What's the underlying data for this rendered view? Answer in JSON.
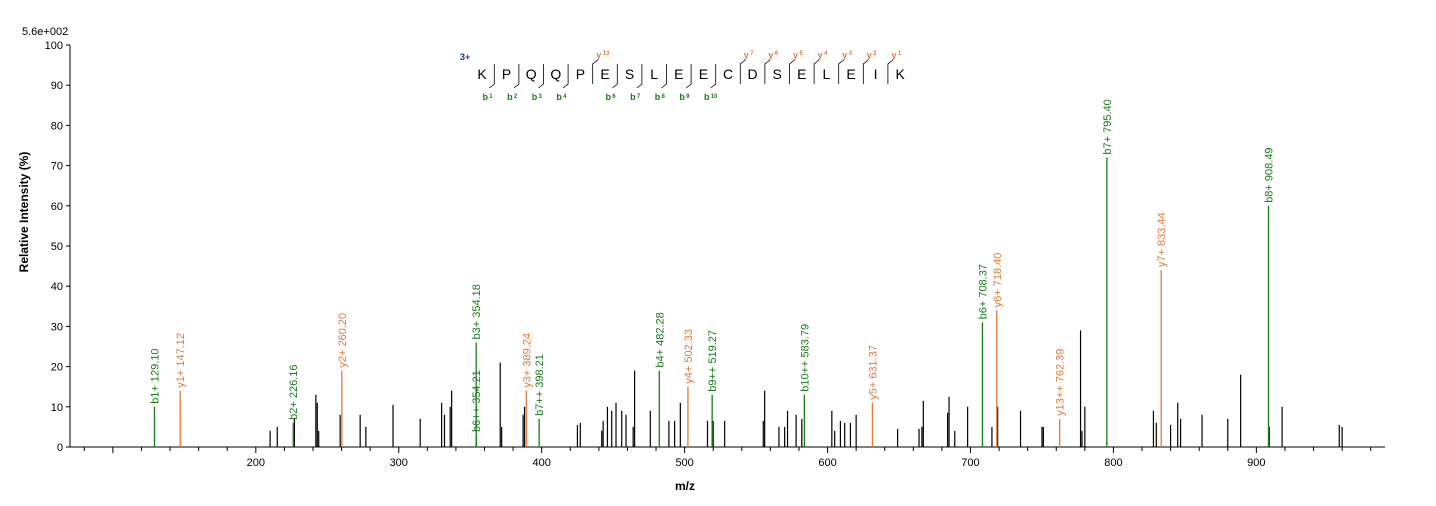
{
  "chart_data": {
    "type": "bar",
    "scale_label": "5.6e+002",
    "xlabel": "m/z",
    "ylabel": "Relative   Intensity (%)",
    "xlim": [
      70,
      990
    ],
    "ylim": [
      0,
      100
    ],
    "x_ticks": [
      200,
      300,
      400,
      500,
      600,
      700,
      800,
      900
    ],
    "y_ticks": [
      0,
      10,
      20,
      30,
      40,
      50,
      60,
      70,
      80,
      90,
      100
    ],
    "colors": {
      "b": "#1a7a1a",
      "y": "#e07a3a",
      "other": "#000000"
    },
    "annotated_peaks": [
      {
        "mz": 129.1,
        "intensity": 10,
        "type": "b",
        "label": "b1+ 129.10"
      },
      {
        "mz": 147.12,
        "intensity": 14,
        "type": "y",
        "label": "y1+ 147.12"
      },
      {
        "mz": 226.16,
        "intensity": 6,
        "type": "b",
        "label": "b2+ 226.16"
      },
      {
        "mz": 260.2,
        "intensity": 19,
        "type": "y",
        "label": "y2+ 260.20"
      },
      {
        "mz": 354.21,
        "intensity": 3,
        "type": "b",
        "label": "b6++ 354.21"
      },
      {
        "mz": 354.18,
        "intensity": 26,
        "type": "b",
        "label": "b3+ 354.18"
      },
      {
        "mz": 389.24,
        "intensity": 14,
        "type": "y",
        "label": "y3+ 389.24"
      },
      {
        "mz": 398.21,
        "intensity": 7,
        "type": "b",
        "label": "b7++ 398.21"
      },
      {
        "mz": 482.28,
        "intensity": 19,
        "type": "b",
        "label": "b4+ 482.28"
      },
      {
        "mz": 502.33,
        "intensity": 15,
        "type": "y",
        "label": "y4+ 502.33"
      },
      {
        "mz": 519.27,
        "intensity": 13,
        "type": "b",
        "label": "b9++ 519.27"
      },
      {
        "mz": 583.79,
        "intensity": 13,
        "type": "b",
        "label": "b10++ 583.79"
      },
      {
        "mz": 631.37,
        "intensity": 11,
        "type": "y",
        "label": "y5+ 631.37"
      },
      {
        "mz": 708.37,
        "intensity": 31,
        "type": "b",
        "label": "b6+ 708.37"
      },
      {
        "mz": 718.4,
        "intensity": 34,
        "type": "y",
        "label": "y6+ 718.40"
      },
      {
        "mz": 762.39,
        "intensity": 7,
        "type": "y",
        "label": "y13++ 762.39"
      },
      {
        "mz": 795.4,
        "intensity": 72,
        "type": "b",
        "label": "b7+ 795.40"
      },
      {
        "mz": 833.44,
        "intensity": 44,
        "type": "y",
        "label": "y7+ 833.44"
      },
      {
        "mz": 908.49,
        "intensity": 60,
        "type": "b",
        "label": "b8+ 908.49"
      }
    ],
    "unlabeled_peaks": [
      [
        210,
        4
      ],
      [
        215,
        5
      ],
      [
        227,
        7
      ],
      [
        242,
        13
      ],
      [
        243,
        11
      ],
      [
        244,
        4
      ],
      [
        259,
        8
      ],
      [
        273,
        8
      ],
      [
        277,
        5
      ],
      [
        296,
        10.5
      ],
      [
        315,
        7
      ],
      [
        330,
        11
      ],
      [
        332,
        8
      ],
      [
        336,
        10
      ],
      [
        337,
        14
      ],
      [
        371,
        21
      ],
      [
        372,
        5
      ],
      [
        387,
        8
      ],
      [
        388,
        10
      ],
      [
        425,
        5.5
      ],
      [
        427,
        6
      ],
      [
        442,
        4
      ],
      [
        443,
        6.5
      ],
      [
        446,
        10
      ],
      [
        449,
        9
      ],
      [
        452,
        11
      ],
      [
        456,
        9
      ],
      [
        459,
        8
      ],
      [
        464,
        5
      ],
      [
        465,
        19
      ],
      [
        476,
        9
      ],
      [
        489,
        6.5
      ],
      [
        493,
        6.5
      ],
      [
        497,
        11
      ],
      [
        516,
        6.5
      ],
      [
        520,
        6.5
      ],
      [
        528,
        6.5
      ],
      [
        555,
        6.5
      ],
      [
        556,
        14
      ],
      [
        566,
        5
      ],
      [
        570,
        5
      ],
      [
        572,
        9
      ],
      [
        578,
        8
      ],
      [
        582,
        7
      ],
      [
        603,
        9
      ],
      [
        605,
        4
      ],
      [
        609,
        6.5
      ],
      [
        612,
        6
      ],
      [
        616,
        6
      ],
      [
        620,
        8
      ],
      [
        649,
        4.5
      ],
      [
        664,
        4.5
      ],
      [
        666,
        5
      ],
      [
        667,
        11.5
      ],
      [
        684,
        8.5
      ],
      [
        685,
        12.5
      ],
      [
        689,
        4
      ],
      [
        698,
        10
      ],
      [
        715,
        5
      ],
      [
        719,
        10
      ],
      [
        735,
        9
      ],
      [
        750,
        5
      ],
      [
        751,
        5
      ],
      [
        777,
        29
      ],
      [
        778,
        4
      ],
      [
        780,
        10
      ],
      [
        828,
        9
      ],
      [
        830,
        6
      ],
      [
        840,
        5.5
      ],
      [
        845,
        11
      ],
      [
        847,
        7
      ],
      [
        862,
        8
      ],
      [
        880,
        7
      ],
      [
        889,
        18
      ],
      [
        909,
        5
      ],
      [
        918,
        10
      ],
      [
        958,
        5.5
      ],
      [
        960,
        5
      ]
    ],
    "sequence": {
      "charge": "3+",
      "residues": [
        "K",
        "P",
        "Q",
        "Q",
        "P",
        "E",
        "S",
        "L",
        "E",
        "E",
        "C",
        "D",
        "S",
        "E",
        "L",
        "E",
        "I",
        "K"
      ],
      "b_ions": [
        {
          "n": 1,
          "after": 0
        },
        {
          "n": 2,
          "after": 1
        },
        {
          "n": 3,
          "after": 2
        },
        {
          "n": 4,
          "after": 3
        },
        {
          "n": 6,
          "after": 5
        },
        {
          "n": 7,
          "after": 6
        },
        {
          "n": 8,
          "after": 7
        },
        {
          "n": 9,
          "after": 8
        },
        {
          "n": 10,
          "after": 9
        }
      ],
      "y_ions": [
        {
          "n": 13,
          "after": 4
        },
        {
          "n": 7,
          "after": 10
        },
        {
          "n": 6,
          "after": 11
        },
        {
          "n": 5,
          "after": 12
        },
        {
          "n": 4,
          "after": 13
        },
        {
          "n": 3,
          "after": 14
        },
        {
          "n": 2,
          "after": 15
        },
        {
          "n": 1,
          "after": 16
        }
      ],
      "ion_letter_b": "b",
      "ion_letter_y": "y"
    }
  }
}
